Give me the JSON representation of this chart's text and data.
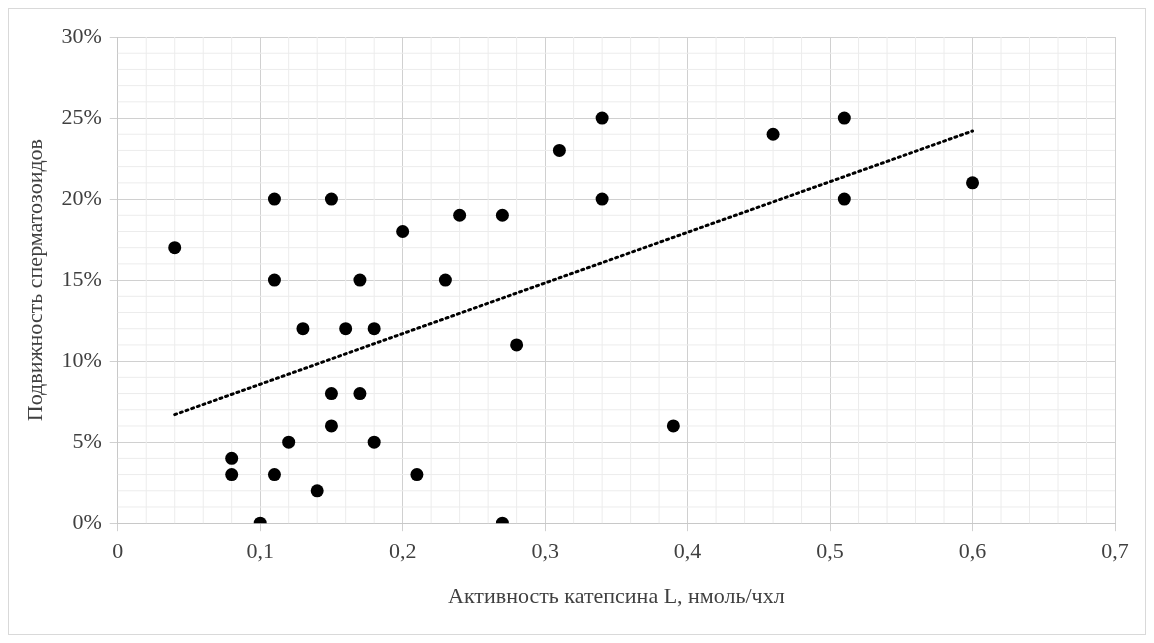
{
  "chart_data": {
    "type": "scatter",
    "xlabel": "Активность катепсина L, нмоль/чхл",
    "ylabel": "Подвижность сперматозоидов",
    "xlim": [
      0,
      0.7
    ],
    "xticks": [
      0,
      {
        "value": 0.1,
        "label": "0,1"
      },
      {
        "value": 0.2,
        "label": "0,2"
      },
      {
        "value": 0.3,
        "label": "0,3"
      },
      {
        "value": 0.4,
        "label": "0,4"
      },
      {
        "value": 0.5,
        "label": "0,5"
      },
      {
        "value": 0.6,
        "label": "0,6"
      },
      {
        "value": 0.7,
        "label": "0,7"
      }
    ],
    "ylim": [
      0,
      30
    ],
    "yticks": [
      {
        "value": 0,
        "label": "0%"
      },
      {
        "value": 5,
        "label": "5%"
      },
      {
        "value": 10,
        "label": "10%"
      },
      {
        "value": 15,
        "label": "15%"
      },
      {
        "value": 20,
        "label": "20%"
      },
      {
        "value": 25,
        "label": "25%"
      },
      {
        "value": 30,
        "label": "30%"
      }
    ],
    "grid": true,
    "legend": false,
    "series": [
      {
        "type": "scatter",
        "color": "#000000",
        "marker": "circle",
        "x": [
          0.04,
          0.08,
          0.08,
          0.1,
          0.11,
          0.11,
          0.11,
          0.12,
          0.13,
          0.14,
          0.15,
          0.15,
          0.15,
          0.16,
          0.17,
          0.17,
          0.18,
          0.18,
          0.2,
          0.21,
          0.23,
          0.24,
          0.27,
          0.27,
          0.28,
          0.31,
          0.34,
          0.34,
          0.39,
          0.46,
          0.51,
          0.51,
          0.6
        ],
        "values": [
          17,
          4,
          3,
          0,
          20,
          15,
          3,
          5,
          12,
          2,
          20,
          8,
          6,
          12,
          15,
          8,
          12,
          5,
          18,
          3,
          15,
          19,
          19,
          0,
          11,
          23,
          25,
          20,
          6,
          24,
          25,
          20,
          21
        ]
      },
      {
        "type": "line",
        "color": "#000000",
        "marker": "none",
        "line_style": "dotted",
        "x": [
          0.04,
          0.6
        ],
        "values": [
          6.7,
          24.2
        ]
      }
    ]
  }
}
